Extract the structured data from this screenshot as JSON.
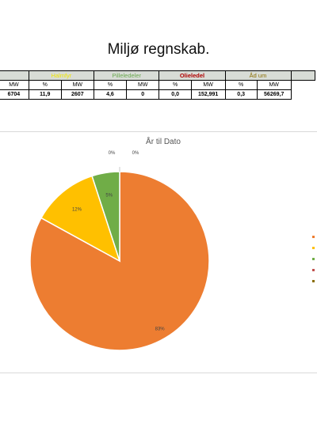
{
  "page": {
    "title": "Miljø regnskab."
  },
  "table": {
    "groups": [
      {
        "label": "",
        "cls": "h-plain"
      },
      {
        "label": "Halmfyr",
        "cls": "h-yellow"
      },
      {
        "label": "Pilleledeler",
        "cls": "h-green"
      },
      {
        "label": "Olieledel",
        "cls": "h-red"
      },
      {
        "label": "Åd um",
        "cls": "h-brown"
      },
      {
        "label": "",
        "cls": "h-plain"
      }
    ],
    "units": [
      "MW",
      "%",
      "MW",
      "%",
      "MW",
      "%",
      "MW",
      "%",
      "MW"
    ],
    "values": [
      "6704",
      "11,9",
      "2607",
      "4,6",
      "0",
      "0,0",
      "152,991",
      "0,3",
      "56269,7"
    ]
  },
  "chart_data": {
    "type": "pie",
    "title": "År til Dato",
    "slices": [
      {
        "value": 83,
        "label": "83%",
        "color": "#ed7d31"
      },
      {
        "value": 12,
        "label": "12%",
        "color": "#ffc000"
      },
      {
        "value": 5,
        "label": "5%",
        "color": "#70ad47"
      },
      {
        "value": 0,
        "label": "0%",
        "color": "#c0504d"
      },
      {
        "value": 0,
        "label": "0%",
        "color": "#8a6d00"
      }
    ],
    "legend_position": "right",
    "legend_colors": [
      "#ed7d31",
      "#ffc000",
      "#70ad47",
      "#c0504d",
      "#8a6d00"
    ]
  }
}
